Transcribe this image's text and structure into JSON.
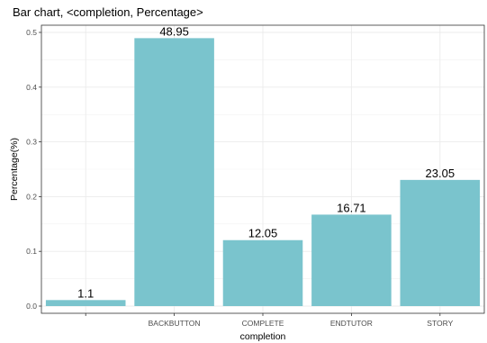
{
  "chart_data": {
    "type": "bar",
    "title": "Bar chart, <completion, Percentage>",
    "xlabel": "completion",
    "ylabel": "Percentage(%)",
    "categories": [
      "",
      "BACKBUTTON",
      "COMPLETE",
      "ENDTUTOR",
      "STORY"
    ],
    "values": [
      0.011,
      0.4895,
      0.1205,
      0.1671,
      0.2305
    ],
    "data_labels": [
      "1.1",
      "48.95",
      "12.05",
      "16.71",
      "23.05"
    ],
    "ylim": [
      0,
      0.5
    ],
    "yticks": [
      0.0,
      0.1,
      0.2,
      0.3,
      0.4,
      0.5
    ],
    "ytick_labels": [
      "0.0",
      "0.1",
      "0.2",
      "0.3",
      "0.4",
      "0.5"
    ],
    "grid": true,
    "bar_color": "#7AC4CD"
  }
}
